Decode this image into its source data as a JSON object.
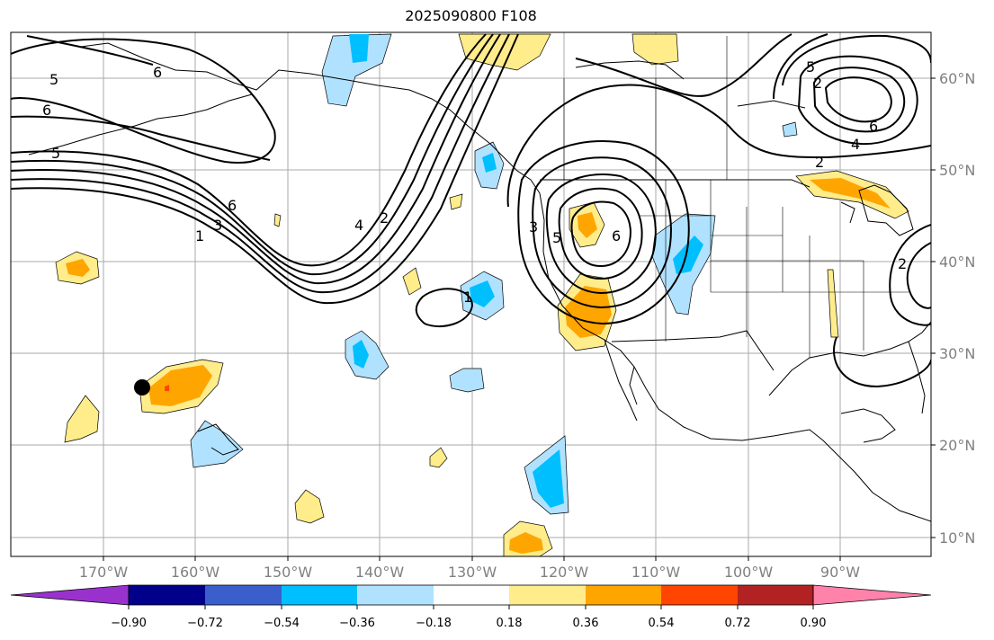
{
  "title": "2025090800 F108",
  "lon_labels": [
    "170°W",
    "160°W",
    "150°W",
    "140°W",
    "130°W",
    "120°W",
    "110°W",
    "100°W",
    "90°W"
  ],
  "lat_labels": [
    "60°N",
    "50°N",
    "40°N",
    "30°N",
    "20°N",
    "10°N"
  ],
  "colorbar": {
    "colors": [
      "#9932cc",
      "#00008b",
      "#3a5fcd",
      "#00bfff",
      "#b0e2ff",
      "#ffffff",
      "#ffec8b",
      "#ffa500",
      "#ff4500",
      "#b22222",
      "#ff82ab"
    ],
    "tick_labels": [
      "−0.90",
      "−0.72",
      "−0.54",
      "−0.36",
      "−0.18",
      "0.18",
      "0.36",
      "0.54",
      "0.72",
      "0.90"
    ]
  },
  "contour_labels": [
    "5",
    "6",
    "5",
    "6",
    "1",
    "3",
    "6",
    "4",
    "2",
    "1",
    "3",
    "5",
    "6",
    "5",
    "2",
    "4",
    "6",
    "2",
    "2"
  ],
  "marker": {
    "color": "#000000"
  }
}
